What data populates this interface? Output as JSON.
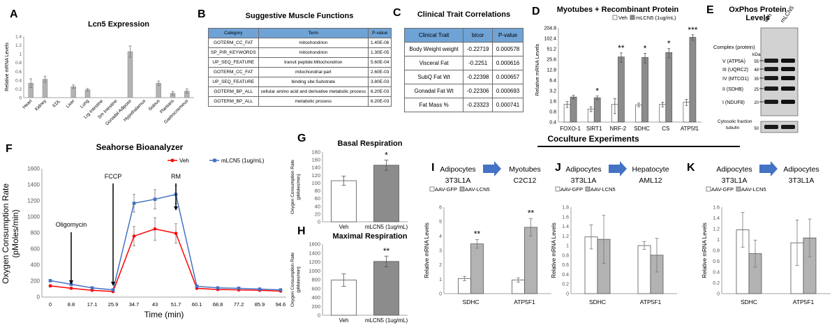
{
  "panels": {
    "A": {
      "letter": "A",
      "title": "Lcn5 Expression"
    },
    "B": {
      "letter": "B",
      "title": "Suggestive Muscle Functions"
    },
    "C": {
      "letter": "C",
      "title": "Clinical Trait Correlations"
    },
    "D": {
      "letter": "D",
      "title": "Myotubes + Recombinant Protein"
    },
    "E": {
      "letter": "E",
      "title": "OxPhos Protein Levels"
    },
    "F": {
      "letter": "F",
      "title": "Seahorse Bioanalyzer"
    },
    "G": {
      "letter": "G",
      "title": "Basal Respiration"
    },
    "H": {
      "letter": "H",
      "title": "Maximal Respiration"
    },
    "I": {
      "letter": "I"
    },
    "J": {
      "letter": "J"
    },
    "K": {
      "letter": "K"
    }
  },
  "coculture_header": "Coculture Experiments",
  "table_B": {
    "headers": [
      "Category",
      "Term",
      "P-value"
    ],
    "rows": [
      [
        "GOTERM_CC_FAT",
        "mitochondrion",
        "1.40E-06"
      ],
      [
        "SP_PIR_KEYWORDS",
        "mitochondrion",
        "1.30E-05"
      ],
      [
        "UP_SEQ_FEATURE",
        "transit peptide:Mitochondrion",
        "5.60E-04"
      ],
      [
        "GOTERM_CC_FAT",
        "mitochondrial part",
        "2.60E-03"
      ],
      [
        "UP_SEQ_FEATURE",
        "binding site:Substrate",
        "3.80E-03"
      ],
      [
        "GOTERM_BP_ALL",
        "cellular amino acid and derivative metabolic process",
        "6.20E-03"
      ],
      [
        "GOTERM_BP_ALL",
        "metabolic process",
        "6.20E-03"
      ]
    ]
  },
  "table_C": {
    "headers": [
      "Clinical Trait",
      "bicor",
      "P-value"
    ],
    "rows": [
      [
        "Body Weight weight",
        "-0.22719",
        "0.000578"
      ],
      [
        "Visceral Fat",
        "-0.2251",
        "0.000616"
      ],
      [
        "SubQ Fat Wt",
        "-0.22398",
        "0.000657"
      ],
      [
        "Gonadal Fat Wt",
        "-0.22306",
        "0.000693"
      ],
      [
        "Fat Mass %",
        "-0.23323",
        "0.000741"
      ]
    ]
  },
  "blot_E": {
    "lanes": [
      "Veh",
      "mLCN5"
    ],
    "complex_label": "Complex (protein)",
    "kda_label": "kDa",
    "bands": [
      "V (ATP5A)",
      "III (UQRC2)",
      "IV (MTCO1)",
      "II (SDHB)",
      "I (NDUF8)"
    ],
    "markers": [
      "55",
      "48",
      "35",
      "25",
      "20"
    ],
    "cyto_label": [
      "Cytosolic fraction",
      "tubulin"
    ],
    "cyto_marker": "50"
  },
  "chart_data": [
    {
      "panel": "A",
      "type": "bar",
      "title": "Lcn5 Expression",
      "ylabel": "Relative mRNA Levels",
      "ylim": [
        0,
        1.4
      ],
      "yticks": [
        "0",
        "0.2",
        "0.4",
        "0.6",
        "0.8",
        "1",
        "1.2",
        "1.4"
      ],
      "categories": [
        "Heart",
        "Kidney",
        "EDL",
        "Liver",
        "Lung",
        "Lrg Intestine",
        "Sm Intestine",
        "Gonadal Adipose",
        "Hypothalamus",
        "Soleus",
        "Plantaris",
        "Gastrocnemeus"
      ],
      "values": [
        0.33,
        0.42,
        0,
        0.25,
        0.18,
        0,
        0,
        1.05,
        0,
        0.33,
        0.1,
        0.15
      ],
      "errors": [
        0.1,
        0.07,
        0,
        0.04,
        0.03,
        0,
        0,
        0.13,
        0,
        0.05,
        0.04,
        0.05
      ],
      "color": "#b3b3b3"
    },
    {
      "panel": "D",
      "type": "bar",
      "title": "Myotubes + Recombinant Protein",
      "ylabel": "Relative mRNA Levels",
      "scale": "log2",
      "yticks": [
        "0.4",
        "0.8",
        "1.6",
        "3.2",
        "6.4",
        "12.8",
        "25.6",
        "51.2",
        "102.4",
        "204.8"
      ],
      "categories": [
        "FOXO-1",
        "SIRT1",
        "NRF-2",
        "SDHC",
        "CS",
        "ATP5f1"
      ],
      "series": [
        {
          "name": "Veh",
          "values": [
            1.3,
            0.95,
            1.3,
            1.25,
            1.3,
            1.5
          ],
          "errors": [
            0.25,
            0.15,
            0.6,
            0.15,
            0.2,
            0.3
          ],
          "color": "#ffffff"
        },
        {
          "name": "mLCN5 (1ug/mL)",
          "values": [
            2.1,
            2.0,
            30,
            29,
            40,
            110
          ],
          "errors": [
            0.25,
            0.25,
            9,
            9,
            12,
            20
          ],
          "color": "#8c8c8c"
        }
      ],
      "significance": [
        "",
        "*",
        "**",
        "*",
        "*",
        "***"
      ]
    },
    {
      "panel": "F",
      "type": "line",
      "title": "Seahorse Bioanalyzer",
      "xlabel": "Time (min)",
      "ylabel": [
        "Oxygen Consumption Rate",
        "(pMoles/min)"
      ],
      "ylim": [
        0,
        1600
      ],
      "yticks": [
        "0",
        "200",
        "400",
        "600",
        "800",
        "1000",
        "1200",
        "1400",
        "1600"
      ],
      "x": [
        "0",
        "8.8",
        "17.1",
        "25.9",
        "34.7",
        "43",
        "51.7",
        "60.1",
        "68.8",
        "77.2",
        "85.9",
        "94.6"
      ],
      "series": [
        {
          "name": "Veh",
          "values": [
            140,
            110,
            85,
            70,
            760,
            850,
            795,
            110,
            95,
            90,
            85,
            75
          ],
          "errors": [
            15,
            15,
            10,
            10,
            120,
            140,
            120,
            15,
            10,
            10,
            10,
            10
          ],
          "color": "#ff0000",
          "marker": "circle"
        },
        {
          "name": "mLCN5 (1ug/mL)",
          "values": [
            205,
            160,
            115,
            90,
            1170,
            1220,
            1280,
            135,
            115,
            110,
            100,
            90
          ],
          "errors": [
            15,
            15,
            10,
            10,
            110,
            120,
            110,
            15,
            10,
            10,
            10,
            10
          ],
          "color": "#4472c4",
          "marker": "square"
        }
      ],
      "annotations": [
        "Oligomycin",
        "FCCP",
        "RM"
      ]
    },
    {
      "panel": "G",
      "type": "bar",
      "title": "Basal Respiration",
      "ylabel": [
        "Oxygen Consumption Rate",
        "(pMoles/min)"
      ],
      "ylim": [
        0,
        180
      ],
      "yticks": [
        "0",
        "20",
        "40",
        "60",
        "80",
        "100",
        "120",
        "140",
        "160",
        "180"
      ],
      "categories": [
        "Veh",
        "mLCN5 (1ug/mL)"
      ],
      "values": [
        106,
        146
      ],
      "errors": [
        12,
        13
      ],
      "colors": [
        "#ffffff",
        "#8c8c8c"
      ],
      "significance": [
        "",
        "*"
      ]
    },
    {
      "panel": "H",
      "type": "bar",
      "title": "Maximal Respiration",
      "ylabel": [
        "Oxygen Consumption Rate",
        "(pMoles/min)"
      ],
      "ylim": [
        0,
        1600
      ],
      "yticks": [
        "0",
        "200",
        "400",
        "600",
        "800",
        "1000",
        "1200",
        "1400",
        "1600"
      ],
      "categories": [
        "Veh",
        "mLCN5 (1ug/mL)"
      ],
      "values": [
        790,
        1210
      ],
      "errors": [
        140,
        120
      ],
      "colors": [
        "#ffffff",
        "#8c8c8c"
      ],
      "significance": [
        "",
        "**"
      ]
    },
    {
      "panel": "I",
      "type": "bar",
      "source": [
        "Adipocytes",
        "3T3L1A"
      ],
      "target": [
        "Myotubes",
        "C2C12"
      ],
      "ylabel": "Relative mRNA Levels",
      "ylim": [
        0,
        6
      ],
      "yticks": [
        "0",
        "1",
        "2",
        "3",
        "4",
        "5",
        "6"
      ],
      "categories": [
        "SDHC",
        "ATP5F1"
      ],
      "series": [
        {
          "name": "AAV-GFP",
          "values": [
            1.05,
            0.95
          ],
          "errors": [
            0.15,
            0.15
          ],
          "color": "#ffffff"
        },
        {
          "name": "AAV-LCN5",
          "values": [
            3.45,
            4.6
          ],
          "errors": [
            0.3,
            0.6
          ],
          "color": "#b3b3b3"
        }
      ],
      "significance": [
        "**",
        "**"
      ]
    },
    {
      "panel": "J",
      "type": "bar",
      "source": [
        "Adipocytes",
        "3T3L1A"
      ],
      "target": [
        "Hepatocyte",
        "AML12"
      ],
      "ylabel": "Relative mRNA Levels",
      "ylim": [
        0,
        1.8
      ],
      "yticks": [
        "0",
        "0.2",
        "0.4",
        "0.6",
        "0.8",
        "1",
        "1.2",
        "1.4",
        "1.6",
        "1.8"
      ],
      "categories": [
        "SDHC",
        "ATP5F1"
      ],
      "series": [
        {
          "name": "AAV-GFP",
          "values": [
            1.18,
            1.0
          ],
          "errors": [
            0.25,
            0.08
          ],
          "color": "#ffffff"
        },
        {
          "name": "AAV-LCN5",
          "values": [
            1.13,
            0.8
          ],
          "errors": [
            0.5,
            0.35
          ],
          "color": "#b3b3b3"
        }
      ],
      "significance": [
        "",
        ""
      ]
    },
    {
      "panel": "K",
      "type": "bar",
      "source": [
        "Adipocytes",
        "3T3L1A"
      ],
      "target": [
        "Adipocytes",
        "3T3L1A"
      ],
      "ylabel": "Relative mRNA Levels",
      "ylim": [
        0,
        1.6
      ],
      "yticks": [
        "0",
        "0.2",
        "0.4",
        "0.6",
        "0.8",
        "1",
        "1.2",
        "1.4",
        "1.6"
      ],
      "categories": [
        "SDHC",
        "ATP5F1"
      ],
      "series": [
        {
          "name": "AAV-GFP",
          "values": [
            1.18,
            0.94
          ],
          "errors": [
            0.32,
            0.42
          ],
          "color": "#ffffff"
        },
        {
          "name": "AAV-LCN5",
          "values": [
            0.74,
            1.03
          ],
          "errors": [
            0.25,
            0.35
          ],
          "color": "#b3b3b3"
        }
      ],
      "significance": [
        "",
        ""
      ]
    }
  ]
}
